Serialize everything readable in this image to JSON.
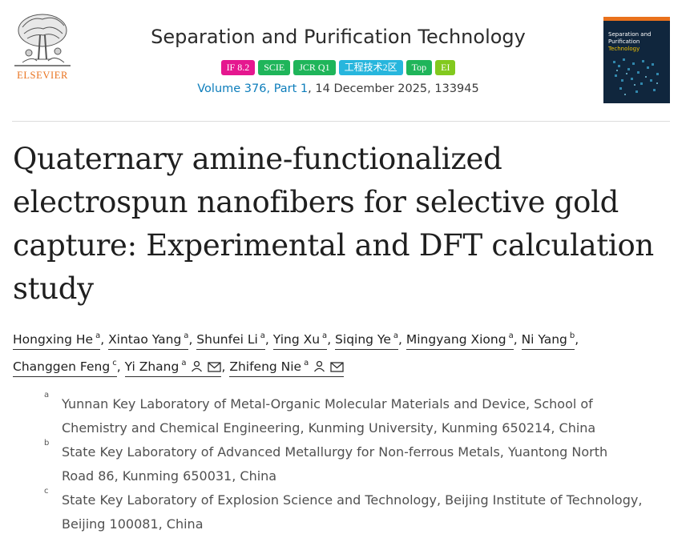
{
  "publisher": {
    "name": "ELSEVIER"
  },
  "journal": {
    "title": "Separation and Purification Technology",
    "badges": [
      {
        "label": "IF 8.2",
        "color": "#e5178f"
      },
      {
        "label": "SCIE",
        "color": "#1fb55a"
      },
      {
        "label": "JCR Q1",
        "color": "#1fb55a"
      },
      {
        "label": "工程技术2区",
        "color": "#27b6dd"
      },
      {
        "label": "Top",
        "color": "#1fb55a"
      },
      {
        "label": "EI",
        "color": "#82c91e"
      }
    ],
    "volume_link": "Volume 376, Part 1",
    "issue_rest": ", 14 December 2025, 133945",
    "cover": {
      "line1": "Separation and",
      "line2": "Purification",
      "line3": "Technology"
    }
  },
  "article": {
    "title_lines": [
      "Quaternary amine-functionalized",
      "electrospun nanofibers for selective gold",
      "capture: Experimental and DFT calculation",
      "study"
    ]
  },
  "authors": [
    {
      "name": "Hongxing He",
      "aff": "a"
    },
    {
      "name": "Xintao Yang",
      "aff": "a"
    },
    {
      "name": "Shunfei Li",
      "aff": "a"
    },
    {
      "name": "Ying Xu",
      "aff": "a"
    },
    {
      "name": "Siqing Ye",
      "aff": "a"
    },
    {
      "name": "Mingyang Xiong",
      "aff": "a"
    },
    {
      "name": "Ni Yang",
      "aff": "b"
    },
    {
      "name": "Changgen Feng",
      "aff": "c"
    },
    {
      "name": "Yi Zhang",
      "aff": "a"
    },
    {
      "name": "Zhifeng Nie",
      "aff": "a"
    }
  ],
  "affiliations": [
    {
      "label": "a",
      "lines": [
        "Yunnan Key Laboratory of Metal-Organic Molecular Materials and Device, School of",
        "Chemistry and Chemical Engineering, Kunming University, Kunming 650214, China"
      ]
    },
    {
      "label": "b",
      "lines": [
        "State Key Laboratory of Advanced Metallurgy for Non-ferrous Metals, Yuantong North",
        "Road 86, Kunming 650031, China"
      ]
    },
    {
      "label": "c",
      "lines": [
        "State Key Laboratory of Explosion Science and Technology, Beijing Institute of Technology,",
        "Beijing 100081, China"
      ]
    }
  ]
}
